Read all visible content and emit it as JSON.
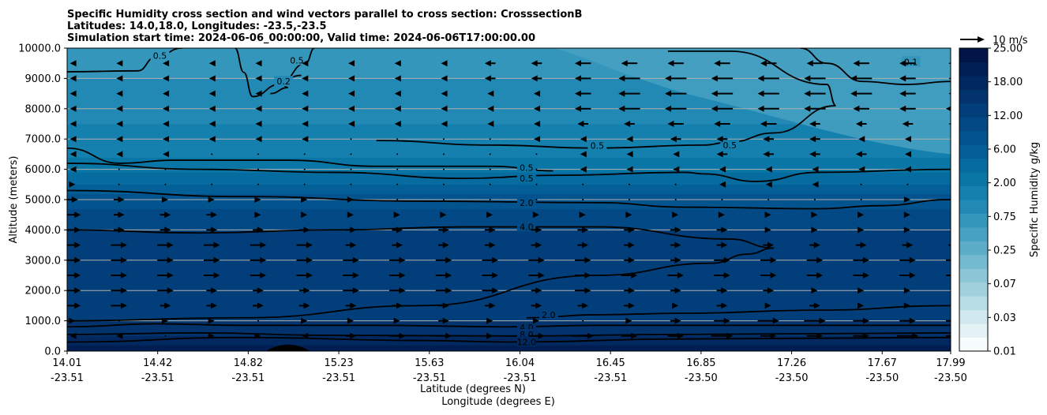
{
  "chart_data": {
    "type": "heatmap",
    "title_lines": [
      "Specific Humidity cross section and wind vectors parallel to cross section: CrosssectionB",
      "Latitudes: 14.0,18.0, Longitudes: -23.5,-23.5",
      "Simulation start time: 2024-06-06_00:00:00, Valid time: 2024-06-06T17:00:00.00"
    ],
    "ylabel": "Altitude (meters)",
    "xlabel_lat": "Latitude (degrees N)",
    "xlabel_lon": "Longitude (degrees E)",
    "ylim": [
      0,
      10000
    ],
    "y_ticks": [
      "0.0",
      "1000.0",
      "2000.0",
      "3000.0",
      "4000.0",
      "5000.0",
      "6000.0",
      "7000.0",
      "8000.0",
      "9000.0",
      "10000.0"
    ],
    "x_ticks_lat": [
      "14.01",
      "14.42",
      "14.82",
      "15.23",
      "15.63",
      "16.04",
      "16.45",
      "16.85",
      "17.26",
      "17.67",
      "17.99"
    ],
    "x_ticks_lon": [
      "-23.51",
      "-23.51",
      "-23.51",
      "-23.51",
      "-23.51",
      "-23.51",
      "-23.51",
      "-23.50",
      "-23.50",
      "-23.50",
      "-23.50"
    ],
    "colorbar_label": "Specific Humidity g/kg",
    "colorbar_ticks": [
      "0.01",
      "0.03",
      "0.07",
      "0.25",
      "0.75",
      "2.00",
      "6.00",
      "12.00",
      "18.00",
      "25.00"
    ],
    "colorbar_colors": [
      "#f7fcfd",
      "#e4f2f5",
      "#d0e8ee",
      "#b9dde6",
      "#a2d1de",
      "#8bc5d6",
      "#73b9cf",
      "#5badc8",
      "#47a1c1",
      "#3596bb",
      "#2289b4",
      "#1580ad",
      "#0a76a6",
      "#066b9f",
      "#045f97",
      "#03548e",
      "#024985",
      "#023f7a",
      "#02336c",
      "#01285f",
      "#011e53",
      "#011546"
    ],
    "profile_altitudes": [
      0,
      300,
      600,
      1000,
      2000,
      3000,
      4000,
      5000,
      5600,
      6200,
      7000,
      8000,
      9000,
      10000
    ],
    "profile_humidity": [
      14,
      11,
      8,
      6,
      5.2,
      5,
      4.2,
      2.5,
      1.3,
      0.8,
      0.55,
      0.45,
      0.35,
      0.3
    ],
    "contours": [
      {
        "level": "0.5",
        "points": [
          [
            0,
            9220
          ],
          [
            0.08,
            9250
          ],
          [
            0.1,
            9700
          ],
          [
            0.13,
            10000
          ]
        ],
        "label_at": [
          0.105,
          9750
        ]
      },
      {
        "level": "0.5",
        "points": [
          [
            0.19,
            10000
          ],
          [
            0.2,
            9200
          ],
          [
            0.21,
            8400
          ],
          [
            0.24,
            8800
          ],
          [
            0.27,
            9500
          ],
          [
            0.28,
            10000
          ]
        ],
        "label_at": [
          0.26,
          9600
        ]
      },
      {
        "level": "0.2",
        "points": [
          [
            0.23,
            8500
          ],
          [
            0.25,
            8700
          ],
          [
            0.24,
            8900
          ],
          [
            0.265,
            9100
          ]
        ],
        "label_at": [
          0.245,
          8900
        ]
      },
      {
        "level": "0.1",
        "points": [
          [
            0.83,
            10000
          ],
          [
            0.86,
            9500
          ],
          [
            0.9,
            8900
          ],
          [
            0.95,
            8800
          ],
          [
            1,
            8900
          ]
        ],
        "label_at": [
          0.955,
          9550
        ]
      },
      {
        "level": "0.5",
        "points": [
          [
            0.68,
            9900
          ],
          [
            0.75,
            9900
          ],
          [
            0.86,
            8800
          ],
          [
            0.87,
            8100
          ],
          [
            0.8,
            7200
          ],
          [
            0.75,
            6900
          ],
          [
            0.72,
            6800
          ]
        ],
        "label_at": [
          0.75,
          6800
        ]
      },
      {
        "level": "0.5",
        "points": [
          [
            0,
            6700
          ],
          [
            0.06,
            6200
          ],
          [
            0.12,
            6300
          ],
          [
            0.25,
            6300
          ],
          [
            0.35,
            6100
          ],
          [
            0.48,
            6100
          ],
          [
            0.55,
            5950
          ]
        ],
        "label_at": [
          0.52,
          6050
        ]
      },
      {
        "level": "0.5",
        "points": [
          [
            0.35,
            6950
          ],
          [
            0.48,
            6800
          ],
          [
            0.6,
            6700
          ],
          [
            0.72,
            6800
          ]
        ],
        "label_at": [
          0.6,
          6780
        ]
      },
      {
        "level": "0.5",
        "points": [
          [
            0,
            6200
          ],
          [
            0.15,
            6000
          ],
          [
            0.3,
            5900
          ],
          [
            0.45,
            5700
          ],
          [
            0.55,
            5800
          ],
          [
            0.7,
            5900
          ],
          [
            0.72,
            5850
          ],
          [
            0.78,
            5600
          ],
          [
            0.85,
            5900
          ],
          [
            1,
            6000
          ]
        ],
        "label_at": [
          0.52,
          5700
        ]
      },
      {
        "level": "2.0",
        "points": [
          [
            0,
            5300
          ],
          [
            0.2,
            5100
          ],
          [
            0.4,
            4950
          ],
          [
            0.6,
            4900
          ],
          [
            0.7,
            4750
          ],
          [
            0.85,
            4700
          ],
          [
            0.92,
            4800
          ],
          [
            1,
            5000
          ]
        ],
        "label_at": [
          0.52,
          4900
        ]
      },
      {
        "level": "4.0",
        "points": [
          [
            0,
            4000
          ],
          [
            0.15,
            3900
          ],
          [
            0.3,
            4000
          ],
          [
            0.45,
            4100
          ],
          [
            0.6,
            4100
          ],
          [
            0.75,
            3700
          ],
          [
            0.8,
            3400
          ],
          [
            0.77,
            3200
          ],
          [
            0.73,
            2900
          ],
          [
            0.6,
            2500
          ],
          [
            0.4,
            1500
          ],
          [
            0.2,
            1100
          ],
          [
            0,
            1000
          ]
        ],
        "label_at": [
          0.52,
          4100
        ]
      },
      {
        "level": "2.0",
        "points": [
          [
            0.52,
            1100
          ],
          [
            0.6,
            1200
          ],
          [
            0.7,
            1250
          ],
          [
            0.85,
            1350
          ],
          [
            1,
            1500
          ]
        ],
        "label_at": [
          0.545,
          1200
        ]
      },
      {
        "level": "4.0",
        "points": [
          [
            0,
            800
          ],
          [
            0.1,
            900
          ],
          [
            0.2,
            850
          ],
          [
            0.35,
            850
          ],
          [
            0.5,
            800
          ],
          [
            0.6,
            850
          ],
          [
            0.8,
            850
          ],
          [
            1,
            850
          ]
        ],
        "label_at": [
          0.52,
          780
        ]
      },
      {
        "level": "8.0",
        "points": [
          [
            0,
            550
          ],
          [
            0.15,
            600
          ],
          [
            0.3,
            520
          ],
          [
            0.5,
            500
          ],
          [
            0.7,
            550
          ],
          [
            1,
            600
          ]
        ],
        "label_at": [
          0.52,
          550
        ]
      },
      {
        "level": "12.0",
        "points": [
          [
            0,
            300
          ],
          [
            0.2,
            450
          ],
          [
            0.4,
            350
          ],
          [
            0.5,
            300
          ],
          [
            0.7,
            400
          ],
          [
            1,
            450
          ]
        ],
        "label_at": [
          0.52,
          300
        ]
      }
    ],
    "terrain": {
      "peak_x": 0.25,
      "peak_height": 220,
      "half_width": 0.025
    },
    "wind_vectors": {
      "reference_label": "10 m/s",
      "reference_speed": 10,
      "x_count": 20,
      "levels": [
        {
          "alt": 500,
          "u": [
            -1,
            -1,
            0,
            1,
            1,
            -1,
            2,
            3,
            3,
            1,
            3,
            4,
            3,
            3,
            4,
            3,
            3,
            3,
            4,
            3
          ]
        },
        {
          "alt": 1000,
          "u": [
            1,
            0,
            1,
            1,
            0,
            1,
            1,
            1,
            2,
            1,
            1,
            0,
            1,
            2,
            3,
            4,
            4,
            3,
            3,
            3
          ]
        },
        {
          "alt": 1500,
          "u": [
            3,
            3,
            2,
            2,
            2,
            2,
            2,
            2,
            2,
            2,
            2,
            2,
            2,
            1,
            2,
            1,
            2,
            1,
            1,
            0
          ]
        },
        {
          "alt": 2000,
          "u": [
            3,
            3,
            3,
            2,
            2,
            2,
            3,
            3,
            3,
            3,
            2,
            3,
            2,
            2,
            2,
            2,
            1,
            1,
            1,
            1
          ]
        },
        {
          "alt": 2500,
          "u": [
            3,
            3,
            3,
            3,
            3,
            3,
            3,
            3,
            3,
            3,
            3,
            3,
            3,
            3,
            3,
            3,
            3,
            3,
            3,
            3
          ]
        },
        {
          "alt": 3000,
          "u": [
            3,
            3,
            3,
            3,
            3,
            3,
            3,
            3,
            3,
            3,
            3,
            3,
            2,
            2,
            3,
            3,
            3,
            3,
            3,
            3
          ]
        },
        {
          "alt": 3500,
          "u": [
            3,
            3,
            3,
            3,
            3,
            3,
            2,
            2,
            2,
            2,
            2,
            2,
            2,
            2,
            2,
            2,
            2,
            2,
            2,
            2
          ]
        },
        {
          "alt": 4000,
          "u": [
            3,
            2,
            2,
            2,
            2,
            2,
            2,
            2,
            2,
            2,
            2,
            2,
            2,
            2,
            2,
            1,
            1,
            1,
            1,
            1
          ]
        },
        {
          "alt": 4500,
          "u": [
            3,
            2,
            2,
            2,
            1,
            1,
            1,
            1,
            1,
            1,
            1,
            1,
            1,
            1,
            1,
            1,
            1,
            1,
            1,
            1
          ]
        },
        {
          "alt": 5000,
          "u": [
            2,
            2,
            1,
            1,
            1,
            1,
            1,
            0,
            0,
            0,
            0,
            0,
            0,
            0,
            0,
            0,
            0,
            0,
            1,
            1
          ]
        },
        {
          "alt": 5500,
          "u": [
            1,
            0,
            0,
            0,
            0,
            0,
            0,
            0,
            0,
            0,
            0,
            0,
            0,
            0,
            -1,
            -1,
            -1,
            0,
            0,
            0
          ]
        },
        {
          "alt": 6000,
          "u": [
            -1,
            0,
            0,
            0,
            0,
            0,
            0,
            0,
            0,
            0,
            0,
            -1,
            -1,
            -1,
            -1,
            -1,
            -1,
            -1,
            -1,
            -1
          ]
        },
        {
          "alt": 6500,
          "u": [
            -1,
            -1,
            -1,
            0,
            0,
            0,
            0,
            0,
            0,
            0,
            0,
            -1,
            -1,
            -1,
            -2,
            -2,
            -2,
            -2,
            -1,
            -1
          ]
        },
        {
          "alt": 7000,
          "u": [
            -1,
            -1,
            -1,
            -1,
            -1,
            -1,
            0,
            0,
            0,
            0,
            -1,
            -1,
            -1,
            -2,
            -2,
            -2,
            -2,
            -1,
            -1,
            -1
          ]
        },
        {
          "alt": 7500,
          "u": [
            -1,
            -1,
            -1,
            -1,
            -1,
            -1,
            -1,
            -1,
            -1,
            -1,
            -1,
            -2,
            -2,
            -3,
            -3,
            -3,
            -2,
            -2,
            -2,
            -2
          ]
        },
        {
          "alt": 8000,
          "u": [
            -1,
            -1,
            -1,
            -1,
            -1,
            -1,
            -1,
            -1,
            -1,
            -1,
            -1,
            -3,
            -4,
            -4,
            -4,
            -4,
            -4,
            -3,
            -3,
            -3
          ]
        },
        {
          "alt": 8500,
          "u": [
            -1,
            -1,
            -1,
            -1,
            -1,
            -1,
            -1,
            -1,
            -1,
            -1,
            -1,
            -3,
            -4,
            -4,
            -4,
            -4,
            -4,
            -4,
            -3,
            -2
          ]
        },
        {
          "alt": 9000,
          "u": [
            -1,
            -1,
            -1,
            -1,
            -1,
            -1,
            -1,
            -1,
            -1,
            -2,
            -2,
            -3,
            -4,
            -4,
            -4,
            -4,
            -4,
            -4,
            -3,
            -2
          ]
        },
        {
          "alt": 9500,
          "u": [
            -1,
            -1,
            -1,
            -1,
            -1,
            -1,
            -1,
            -1,
            -1,
            -2,
            -2,
            -3,
            -3,
            -3,
            -3,
            -3,
            -3,
            -3,
            -3,
            -2
          ]
        }
      ]
    }
  }
}
